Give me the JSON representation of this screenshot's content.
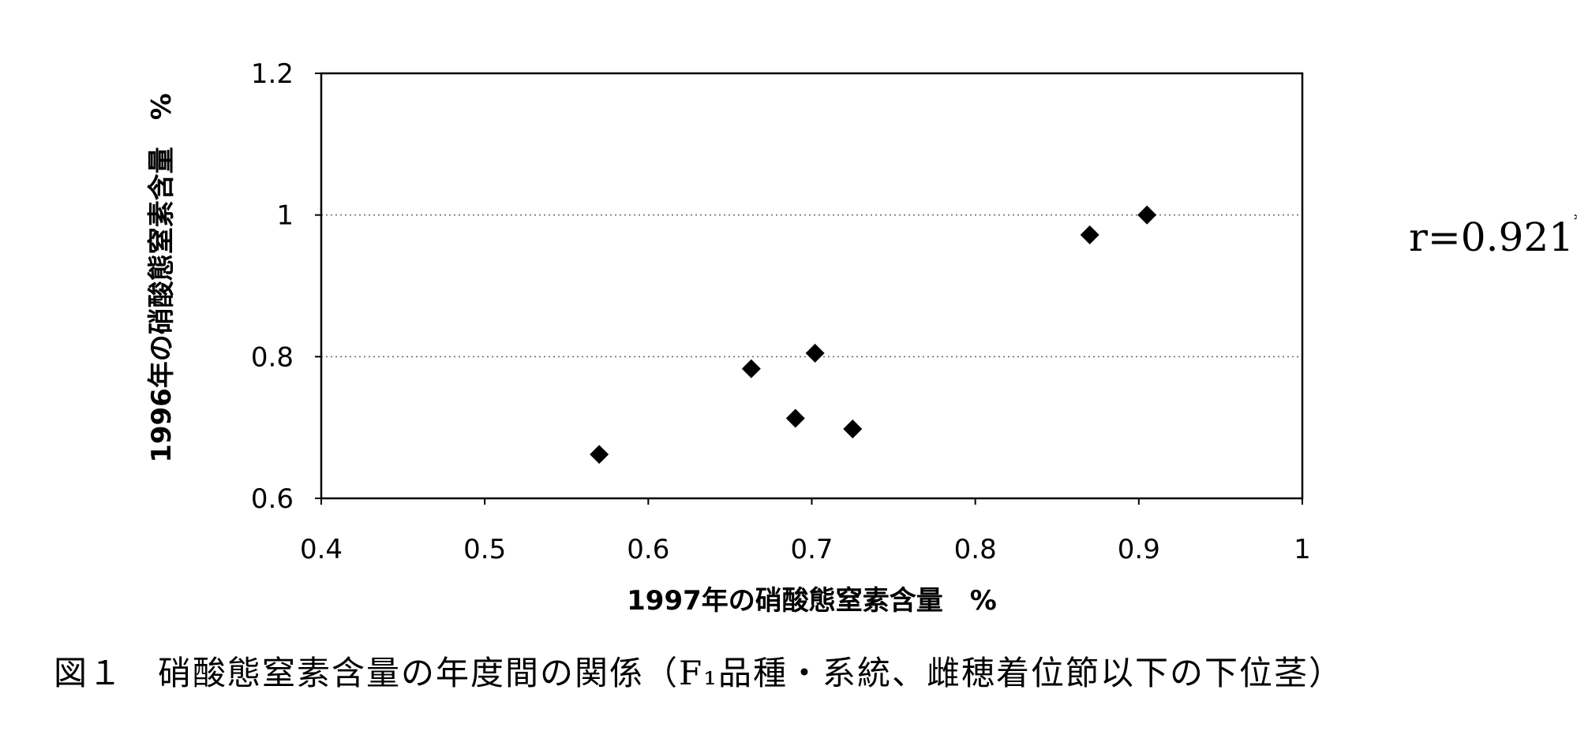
{
  "chart_data": {
    "type": "scatter",
    "xlabel": "1997年の硝酸態窒素含量　%",
    "ylabel": "1996年の硝酸態窒素含量　%",
    "xlim": [
      0.4,
      1.0
    ],
    "ylim": [
      0.6,
      1.2
    ],
    "xticks": [
      "0.4",
      "0.5",
      "0.6",
      "0.7",
      "0.8",
      "0.9",
      "1"
    ],
    "yticks": [
      "0.6",
      "0.8",
      "1",
      "1.2"
    ],
    "grid": "horizontal dotted",
    "marker": "diamond",
    "marker_color": "#000000",
    "points": [
      {
        "x": 0.57,
        "y": 0.662
      },
      {
        "x": 0.663,
        "y": 0.783
      },
      {
        "x": 0.69,
        "y": 0.713
      },
      {
        "x": 0.702,
        "y": 0.805
      },
      {
        "x": 0.725,
        "y": 0.698
      },
      {
        "x": 0.87,
        "y": 0.972
      },
      {
        "x": 0.905,
        "y": 1.0
      }
    ],
    "annotation": "r=0.921",
    "annotation_sup": "**"
  },
  "caption": "図１　硝酸態窒素含量の年度間の関係（F₁品種・系統、雌穂着位節以下の下位茎）"
}
